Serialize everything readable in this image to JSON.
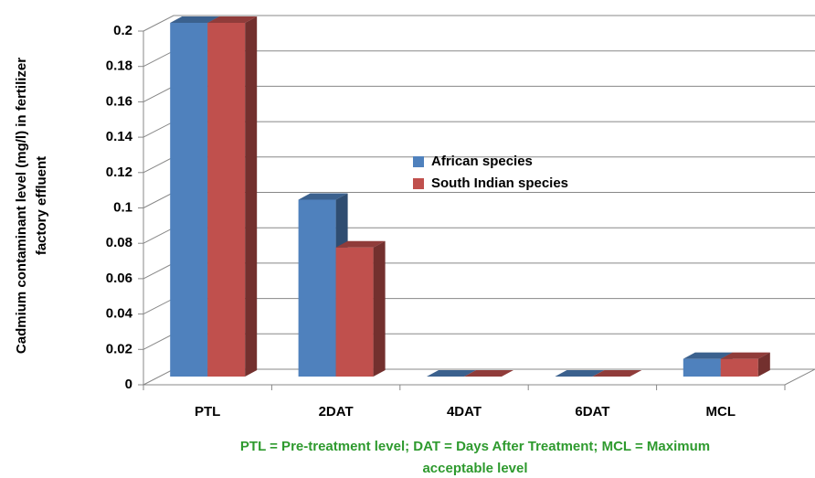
{
  "chart_data": {
    "type": "bar",
    "y_label": [
      "Cadmium contaminant level (mg/l) in fertilizer",
      "factory effluent"
    ],
    "footnote": [
      "PTL = Pre-treatment level; DAT = Days After Treatment; MCL = Maximum",
      "acceptable level"
    ],
    "categories": [
      "PTL",
      "2DAT",
      "4DAT",
      "6DAT",
      "MCL"
    ],
    "series": [
      {
        "name": "African species",
        "color": "#4f81bd",
        "values": [
          0.2,
          0.1,
          0,
          0,
          0.01
        ]
      },
      {
        "name": "South Indian species",
        "color": "#c0504d",
        "values": [
          0.2,
          0.073,
          0,
          0,
          0.01
        ]
      }
    ],
    "ylim": [
      0,
      0.2
    ],
    "yticks": [
      0,
      0.02,
      0.04,
      0.06,
      0.08,
      0.1,
      0.12,
      0.14,
      0.16,
      0.18,
      0.2
    ],
    "grid": true,
    "legend": "center"
  }
}
